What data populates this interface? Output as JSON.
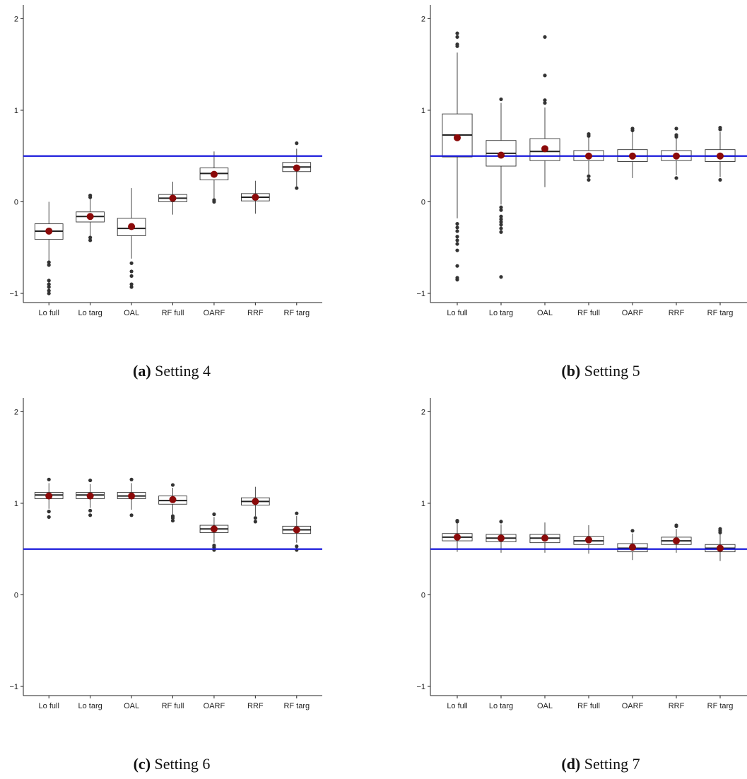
{
  "chart_data": [
    {
      "type": "boxplot",
      "caption_label": "(a)",
      "caption_text": "Setting 4",
      "categories": [
        "Lo full",
        "Lo targ",
        "OAL",
        "RF full",
        "OARF",
        "RRF",
        "RF targ"
      ],
      "ylim": [
        -1.1,
        2.15
      ],
      "yticks": [
        -1,
        0,
        1,
        2
      ],
      "reference_line": 0.5,
      "boxes": [
        {
          "q1": -0.41,
          "median": -0.32,
          "q3": -0.24,
          "whisker_low": -0.64,
          "whisker_high": 0.0,
          "mean": -0.32,
          "outliers": [
            -0.66,
            -0.69,
            -0.86,
            -0.9,
            -0.93,
            -0.97,
            -1.0
          ]
        },
        {
          "q1": -0.22,
          "median": -0.16,
          "q3": -0.11,
          "whisker_low": -0.37,
          "whisker_high": 0.04,
          "mean": -0.16,
          "outliers": [
            0.05,
            0.07,
            -0.39,
            -0.42
          ]
        },
        {
          "q1": -0.37,
          "median": -0.29,
          "q3": -0.18,
          "whisker_low": -0.62,
          "whisker_high": 0.15,
          "mean": -0.27,
          "outliers": [
            -0.67,
            -0.76,
            -0.81,
            -0.9,
            -0.93
          ]
        },
        {
          "q1": 0.0,
          "median": 0.04,
          "q3": 0.08,
          "whisker_low": -0.14,
          "whisker_high": 0.22,
          "mean": 0.04,
          "outliers": []
        },
        {
          "q1": 0.24,
          "median": 0.31,
          "q3": 0.37,
          "whisker_low": 0.03,
          "whisker_high": 0.55,
          "mean": 0.3,
          "outliers": [
            0.0,
            0.02
          ]
        },
        {
          "q1": 0.01,
          "median": 0.05,
          "q3": 0.09,
          "whisker_low": -0.13,
          "whisker_high": 0.23,
          "mean": 0.05,
          "outliers": []
        },
        {
          "q1": 0.33,
          "median": 0.38,
          "q3": 0.43,
          "whisker_low": 0.17,
          "whisker_high": 0.58,
          "mean": 0.37,
          "outliers": [
            0.15,
            0.64
          ]
        }
      ]
    },
    {
      "type": "boxplot",
      "caption_label": "(b)",
      "caption_text": "Setting 5",
      "categories": [
        "Lo full",
        "Lo targ",
        "OAL",
        "RF full",
        "OARF",
        "RRF",
        "RF targ"
      ],
      "ylim": [
        -1.1,
        2.15
      ],
      "yticks": [
        -1,
        0,
        1,
        2
      ],
      "reference_line": 0.5,
      "boxes": [
        {
          "q1": 0.49,
          "median": 0.73,
          "q3": 0.96,
          "whisker_low": -0.18,
          "whisker_high": 1.63,
          "mean": 0.7,
          "outliers": [
            1.7,
            1.72,
            1.8,
            1.84,
            -0.24,
            -0.28,
            -0.32,
            -0.38,
            -0.42,
            -0.46,
            -0.53,
            -0.7,
            -0.83,
            -0.85
          ]
        },
        {
          "q1": 0.39,
          "median": 0.53,
          "q3": 0.67,
          "whisker_low": -0.03,
          "whisker_high": 1.08,
          "mean": 0.51,
          "outliers": [
            1.12,
            -0.06,
            -0.09,
            -0.16,
            -0.19,
            -0.22,
            -0.25,
            -0.29,
            -0.33,
            -0.82
          ]
        },
        {
          "q1": 0.45,
          "median": 0.55,
          "q3": 0.69,
          "whisker_low": 0.16,
          "whisker_high": 1.03,
          "mean": 0.58,
          "outliers": [
            1.08,
            1.11,
            1.38,
            1.8
          ]
        },
        {
          "q1": 0.45,
          "median": 0.5,
          "q3": 0.56,
          "whisker_low": 0.3,
          "whisker_high": 0.7,
          "mean": 0.5,
          "outliers": [
            0.72,
            0.74,
            0.28,
            0.24
          ]
        },
        {
          "q1": 0.44,
          "median": 0.5,
          "q3": 0.57,
          "whisker_low": 0.26,
          "whisker_high": 0.76,
          "mean": 0.5,
          "outliers": [
            0.78,
            0.8
          ]
        },
        {
          "q1": 0.45,
          "median": 0.5,
          "q3": 0.56,
          "whisker_low": 0.29,
          "whisker_high": 0.69,
          "mean": 0.5,
          "outliers": [
            0.71,
            0.73,
            0.8,
            0.26
          ]
        },
        {
          "q1": 0.44,
          "median": 0.5,
          "q3": 0.57,
          "whisker_low": 0.27,
          "whisker_high": 0.76,
          "mean": 0.5,
          "outliers": [
            0.79,
            0.81,
            0.24
          ]
        }
      ]
    },
    {
      "type": "boxplot",
      "caption_label": "(c)",
      "caption_text": "Setting 6",
      "categories": [
        "Lo full",
        "Lo targ",
        "OAL",
        "RF full",
        "OARF",
        "RRF",
        "RF targ"
      ],
      "ylim": [
        -1.1,
        2.15
      ],
      "yticks": [
        -1,
        0,
        1,
        2
      ],
      "reference_line": 0.5,
      "boxes": [
        {
          "q1": 1.05,
          "median": 1.09,
          "q3": 1.12,
          "whisker_low": 0.94,
          "whisker_high": 1.22,
          "mean": 1.08,
          "outliers": [
            1.26,
            0.91,
            0.85
          ]
        },
        {
          "q1": 1.05,
          "median": 1.09,
          "q3": 1.12,
          "whisker_low": 0.95,
          "whisker_high": 1.21,
          "mean": 1.08,
          "outliers": [
            1.25,
            0.92,
            0.87
          ]
        },
        {
          "q1": 1.05,
          "median": 1.08,
          "q3": 1.12,
          "whisker_low": 0.93,
          "whisker_high": 1.22,
          "mean": 1.08,
          "outliers": [
            1.26,
            0.87
          ]
        },
        {
          "q1": 0.99,
          "median": 1.03,
          "q3": 1.08,
          "whisker_low": 0.88,
          "whisker_high": 1.17,
          "mean": 1.04,
          "outliers": [
            1.2,
            0.86,
            0.84,
            0.81
          ]
        },
        {
          "q1": 0.68,
          "median": 0.72,
          "q3": 0.76,
          "whisker_low": 0.57,
          "whisker_high": 0.85,
          "mean": 0.72,
          "outliers": [
            0.88,
            0.54,
            0.52,
            0.49
          ]
        },
        {
          "q1": 0.98,
          "median": 1.02,
          "q3": 1.06,
          "whisker_low": 0.86,
          "whisker_high": 1.18,
          "mean": 1.02,
          "outliers": [
            0.84,
            0.8
          ]
        },
        {
          "q1": 0.67,
          "median": 0.71,
          "q3": 0.75,
          "whisker_low": 0.57,
          "whisker_high": 0.86,
          "mean": 0.71,
          "outliers": [
            0.89,
            0.53,
            0.49
          ]
        }
      ]
    },
    {
      "type": "boxplot",
      "caption_label": "(d)",
      "caption_text": "Setting 7",
      "categories": [
        "Lo full",
        "Lo targ",
        "OAL",
        "RF full",
        "OARF",
        "RRF",
        "RF targ"
      ],
      "ylim": [
        -1.1,
        2.15
      ],
      "yticks": [
        -1,
        0,
        1,
        2
      ],
      "reference_line": 0.5,
      "boxes": [
        {
          "q1": 0.59,
          "median": 0.63,
          "q3": 0.67,
          "whisker_low": 0.47,
          "whisker_high": 0.78,
          "mean": 0.63,
          "outliers": [
            0.8,
            0.81
          ]
        },
        {
          "q1": 0.58,
          "median": 0.62,
          "q3": 0.66,
          "whisker_low": 0.46,
          "whisker_high": 0.77,
          "mean": 0.62,
          "outliers": [
            0.8
          ]
        },
        {
          "q1": 0.57,
          "median": 0.62,
          "q3": 0.66,
          "whisker_low": 0.46,
          "whisker_high": 0.79,
          "mean": 0.62,
          "outliers": []
        },
        {
          "q1": 0.55,
          "median": 0.59,
          "q3": 0.64,
          "whisker_low": 0.45,
          "whisker_high": 0.76,
          "mean": 0.6,
          "outliers": []
        },
        {
          "q1": 0.47,
          "median": 0.51,
          "q3": 0.56,
          "whisker_low": 0.38,
          "whisker_high": 0.67,
          "mean": 0.52,
          "outliers": [
            0.7
          ]
        },
        {
          "q1": 0.55,
          "median": 0.59,
          "q3": 0.63,
          "whisker_low": 0.46,
          "whisker_high": 0.72,
          "mean": 0.59,
          "outliers": [
            0.75,
            0.76
          ]
        },
        {
          "q1": 0.47,
          "median": 0.51,
          "q3": 0.55,
          "whisker_low": 0.37,
          "whisker_high": 0.66,
          "mean": 0.51,
          "outliers": [
            0.68,
            0.7,
            0.72
          ]
        }
      ]
    }
  ]
}
